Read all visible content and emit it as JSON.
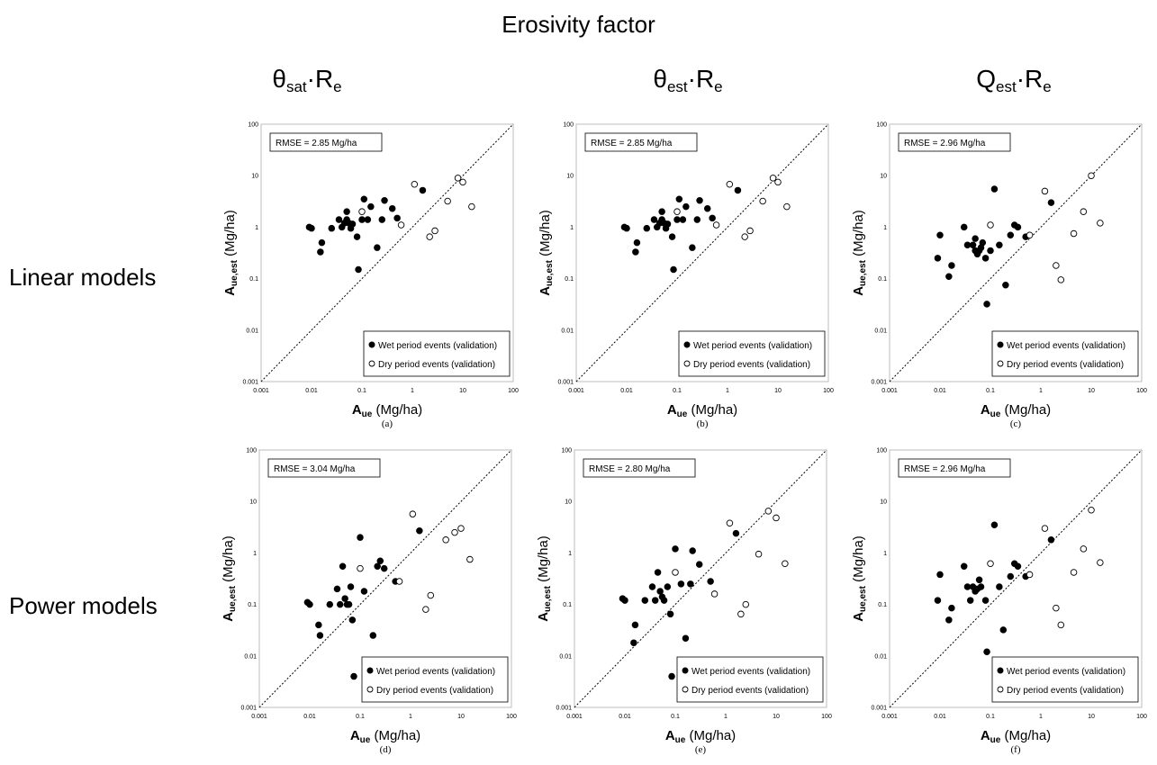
{
  "figure": {
    "header": "Erosivity factor",
    "columns": [
      {
        "main": "θ",
        "sub": "sat",
        "rest": "·R",
        "rest_sub": "e"
      },
      {
        "main": "θ",
        "sub": "est",
        "rest": "·R",
        "rest_sub": "e"
      },
      {
        "main": "Q",
        "sub": "est",
        "rest": "·R",
        "rest_sub": "e"
      }
    ],
    "rows": [
      "Linear models",
      "Power models"
    ],
    "legend": {
      "wet": "Wet period events (validation)",
      "dry": "Dry period events (validation)"
    },
    "axis_text": {
      "x_main": "A",
      "x_sub": "ue",
      "x_unit": " (Mg/ha)",
      "y_main": "A",
      "y_sub": "ue,est",
      "y_unit": " (Mg/ha)"
    },
    "ticks": [
      "0.001",
      "0.01",
      "0.1",
      "1",
      "10",
      "100"
    ]
  },
  "chart_data": [
    {
      "type": "scatter",
      "panel": "a",
      "caption": "(a)",
      "rmse": "RMSE = 2.85 Mg/ha",
      "xscale": "log",
      "yscale": "log",
      "xlim": [
        0.001,
        100
      ],
      "ylim": [
        0.001,
        100
      ],
      "reference_line": "1:1",
      "series": [
        {
          "name": "Wet period events (validation)",
          "marker": "filled",
          "points": [
            [
              0.009,
              1.0
            ],
            [
              0.01,
              0.95
            ],
            [
              0.015,
              0.33
            ],
            [
              0.016,
              0.5
            ],
            [
              0.025,
              0.95
            ],
            [
              0.035,
              1.4
            ],
            [
              0.04,
              1.0
            ],
            [
              0.045,
              1.2
            ],
            [
              0.05,
              2.0
            ],
            [
              0.05,
              1.4
            ],
            [
              0.055,
              1.2
            ],
            [
              0.06,
              0.95
            ],
            [
              0.065,
              1.15
            ],
            [
              0.08,
              0.65
            ],
            [
              0.085,
              0.15
            ],
            [
              0.1,
              1.4
            ],
            [
              0.11,
              3.5
            ],
            [
              0.13,
              1.4
            ],
            [
              0.15,
              2.5
            ],
            [
              0.2,
              0.4
            ],
            [
              0.25,
              1.4
            ],
            [
              0.28,
              3.3
            ],
            [
              0.4,
              2.3
            ],
            [
              0.5,
              1.5
            ],
            [
              1.6,
              5.2
            ]
          ]
        },
        {
          "name": "Dry period events (validation)",
          "marker": "open",
          "points": [
            [
              0.1,
              2.0
            ],
            [
              0.6,
              1.1
            ],
            [
              1.1,
              6.8
            ],
            [
              2.2,
              0.65
            ],
            [
              2.8,
              0.85
            ],
            [
              5,
              3.2
            ],
            [
              8,
              9.0
            ],
            [
              10,
              7.5
            ],
            [
              15,
              2.5
            ]
          ]
        }
      ]
    },
    {
      "type": "scatter",
      "panel": "b",
      "caption": "(b)",
      "rmse": "RMSE = 2.85 Mg/ha",
      "xscale": "log",
      "yscale": "log",
      "xlim": [
        0.001,
        100
      ],
      "ylim": [
        0.001,
        100
      ],
      "reference_line": "1:1",
      "series": [
        {
          "name": "Wet period events (validation)",
          "marker": "filled",
          "points": [
            [
              0.009,
              1.0
            ],
            [
              0.01,
              0.95
            ],
            [
              0.015,
              0.33
            ],
            [
              0.016,
              0.5
            ],
            [
              0.025,
              0.95
            ],
            [
              0.035,
              1.4
            ],
            [
              0.04,
              1.0
            ],
            [
              0.045,
              1.2
            ],
            [
              0.05,
              2.0
            ],
            [
              0.05,
              1.4
            ],
            [
              0.055,
              1.2
            ],
            [
              0.06,
              0.95
            ],
            [
              0.065,
              1.15
            ],
            [
              0.08,
              0.65
            ],
            [
              0.085,
              0.15
            ],
            [
              0.1,
              1.4
            ],
            [
              0.11,
              3.5
            ],
            [
              0.13,
              1.4
            ],
            [
              0.15,
              2.5
            ],
            [
              0.2,
              0.4
            ],
            [
              0.25,
              1.4
            ],
            [
              0.28,
              3.3
            ],
            [
              0.4,
              2.3
            ],
            [
              0.5,
              1.5
            ],
            [
              1.6,
              5.2
            ]
          ]
        },
        {
          "name": "Dry period events (validation)",
          "marker": "open",
          "points": [
            [
              0.1,
              2.0
            ],
            [
              0.6,
              1.1
            ],
            [
              1.1,
              6.8
            ],
            [
              2.2,
              0.65
            ],
            [
              2.8,
              0.85
            ],
            [
              5,
              3.2
            ],
            [
              8,
              9.0
            ],
            [
              10,
              7.5
            ],
            [
              15,
              2.5
            ]
          ]
        }
      ]
    },
    {
      "type": "scatter",
      "panel": "c",
      "caption": "(c)",
      "rmse": "RMSE = 2.96 Mg/ha",
      "xscale": "log",
      "yscale": "log",
      "xlim": [
        0.001,
        100
      ],
      "ylim": [
        0.001,
        100
      ],
      "reference_line": "1:1",
      "series": [
        {
          "name": "Wet period events (validation)",
          "marker": "filled",
          "points": [
            [
              0.009,
              0.25
            ],
            [
              0.01,
              0.7
            ],
            [
              0.015,
              0.11
            ],
            [
              0.017,
              0.18
            ],
            [
              0.03,
              1.0
            ],
            [
              0.035,
              0.45
            ],
            [
              0.045,
              0.45
            ],
            [
              0.05,
              0.35
            ],
            [
              0.05,
              0.6
            ],
            [
              0.055,
              0.3
            ],
            [
              0.06,
              0.35
            ],
            [
              0.065,
              0.4
            ],
            [
              0.07,
              0.5
            ],
            [
              0.08,
              0.25
            ],
            [
              0.085,
              0.032
            ],
            [
              0.1,
              0.35
            ],
            [
              0.12,
              5.5
            ],
            [
              0.15,
              0.45
            ],
            [
              0.2,
              0.075
            ],
            [
              0.25,
              0.7
            ],
            [
              0.3,
              1.1
            ],
            [
              0.35,
              1.0
            ],
            [
              0.5,
              0.65
            ],
            [
              1.6,
              3.0
            ]
          ]
        },
        {
          "name": "Dry period events (validation)",
          "marker": "open",
          "points": [
            [
              0.1,
              1.1
            ],
            [
              0.6,
              0.7
            ],
            [
              1.2,
              5.0
            ],
            [
              2,
              0.18
            ],
            [
              2.5,
              0.095
            ],
            [
              4.5,
              0.75
            ],
            [
              7,
              2.0
            ],
            [
              10,
              10.0
            ],
            [
              15,
              1.2
            ]
          ]
        }
      ]
    },
    {
      "type": "scatter",
      "panel": "d",
      "caption": "(d)",
      "rmse": "RMSE = 3.04 Mg/ha",
      "xscale": "log",
      "yscale": "log",
      "xlim": [
        0.001,
        100
      ],
      "ylim": [
        0.001,
        100
      ],
      "reference_line": "1:1",
      "series": [
        {
          "name": "Wet period events (validation)",
          "marker": "filled",
          "points": [
            [
              0.009,
              0.11
            ],
            [
              0.01,
              0.1
            ],
            [
              0.015,
              0.04
            ],
            [
              0.016,
              0.025
            ],
            [
              0.025,
              0.1
            ],
            [
              0.035,
              0.2
            ],
            [
              0.04,
              0.1
            ],
            [
              0.045,
              0.55
            ],
            [
              0.05,
              0.13
            ],
            [
              0.055,
              0.1
            ],
            [
              0.06,
              0.1
            ],
            [
              0.065,
              0.22
            ],
            [
              0.07,
              0.05
            ],
            [
              0.075,
              0.004
            ],
            [
              0.1,
              2.0
            ],
            [
              0.12,
              0.18
            ],
            [
              0.18,
              0.025
            ],
            [
              0.22,
              0.55
            ],
            [
              0.25,
              0.7
            ],
            [
              0.3,
              0.5
            ],
            [
              0.5,
              0.28
            ],
            [
              1.5,
              2.7
            ]
          ]
        },
        {
          "name": "Dry period events (validation)",
          "marker": "open",
          "points": [
            [
              0.1,
              0.5
            ],
            [
              0.6,
              0.28
            ],
            [
              1.1,
              5.7
            ],
            [
              2.0,
              0.08
            ],
            [
              2.5,
              0.15
            ],
            [
              5,
              1.8
            ],
            [
              7.5,
              2.5
            ],
            [
              10,
              3.0
            ],
            [
              15,
              0.75
            ]
          ]
        }
      ]
    },
    {
      "type": "scatter",
      "panel": "e",
      "caption": "(e)",
      "rmse": "RMSE = 2.80 Mg/ha",
      "xscale": "log",
      "yscale": "log",
      "xlim": [
        0.001,
        100
      ],
      "ylim": [
        0.001,
        100
      ],
      "reference_line": "1:1",
      "series": [
        {
          "name": "Wet period events (validation)",
          "marker": "filled",
          "points": [
            [
              0.009,
              0.13
            ],
            [
              0.01,
              0.12
            ],
            [
              0.015,
              0.018
            ],
            [
              0.016,
              0.04
            ],
            [
              0.025,
              0.12
            ],
            [
              0.035,
              0.22
            ],
            [
              0.04,
              0.12
            ],
            [
              0.045,
              0.42
            ],
            [
              0.05,
              0.18
            ],
            [
              0.055,
              0.14
            ],
            [
              0.06,
              0.12
            ],
            [
              0.07,
              0.22
            ],
            [
              0.08,
              0.065
            ],
            [
              0.085,
              0.004
            ],
            [
              0.1,
              1.2
            ],
            [
              0.13,
              0.25
            ],
            [
              0.16,
              0.022
            ],
            [
              0.2,
              0.25
            ],
            [
              0.22,
              1.1
            ],
            [
              0.3,
              0.6
            ],
            [
              0.5,
              0.28
            ],
            [
              1.6,
              2.4
            ]
          ]
        },
        {
          "name": "Dry period events (validation)",
          "marker": "open",
          "points": [
            [
              0.1,
              0.42
            ],
            [
              0.6,
              0.16
            ],
            [
              1.2,
              3.8
            ],
            [
              2.0,
              0.065
            ],
            [
              2.5,
              0.1
            ],
            [
              4.5,
              0.95
            ],
            [
              7,
              6.5
            ],
            [
              10,
              4.8
            ],
            [
              15,
              0.62
            ]
          ]
        }
      ]
    },
    {
      "type": "scatter",
      "panel": "f",
      "caption": "(f)",
      "rmse": "RMSE = 2.96 Mg/ha",
      "xscale": "log",
      "yscale": "log",
      "xlim": [
        0.001,
        100
      ],
      "ylim": [
        0.001,
        100
      ],
      "reference_line": "1:1",
      "series": [
        {
          "name": "Wet period events (validation)",
          "marker": "filled",
          "points": [
            [
              0.009,
              0.12
            ],
            [
              0.01,
              0.38
            ],
            [
              0.015,
              0.05
            ],
            [
              0.017,
              0.085
            ],
            [
              0.03,
              0.55
            ],
            [
              0.035,
              0.22
            ],
            [
              0.04,
              0.12
            ],
            [
              0.045,
              0.22
            ],
            [
              0.05,
              0.18
            ],
            [
              0.055,
              0.2
            ],
            [
              0.06,
              0.3
            ],
            [
              0.065,
              0.22
            ],
            [
              0.08,
              0.12
            ],
            [
              0.085,
              0.012
            ],
            [
              0.12,
              3.5
            ],
            [
              0.15,
              0.22
            ],
            [
              0.18,
              0.032
            ],
            [
              0.25,
              0.35
            ],
            [
              0.3,
              0.62
            ],
            [
              0.35,
              0.55
            ],
            [
              0.5,
              0.35
            ],
            [
              1.6,
              1.8
            ]
          ]
        },
        {
          "name": "Dry period events (validation)",
          "marker": "open",
          "points": [
            [
              0.1,
              0.62
            ],
            [
              0.6,
              0.38
            ],
            [
              1.2,
              3.0
            ],
            [
              2.0,
              0.085
            ],
            [
              2.5,
              0.04
            ],
            [
              4.5,
              0.42
            ],
            [
              7,
              1.2
            ],
            [
              10,
              6.8
            ],
            [
              15,
              0.65
            ]
          ]
        }
      ]
    }
  ]
}
